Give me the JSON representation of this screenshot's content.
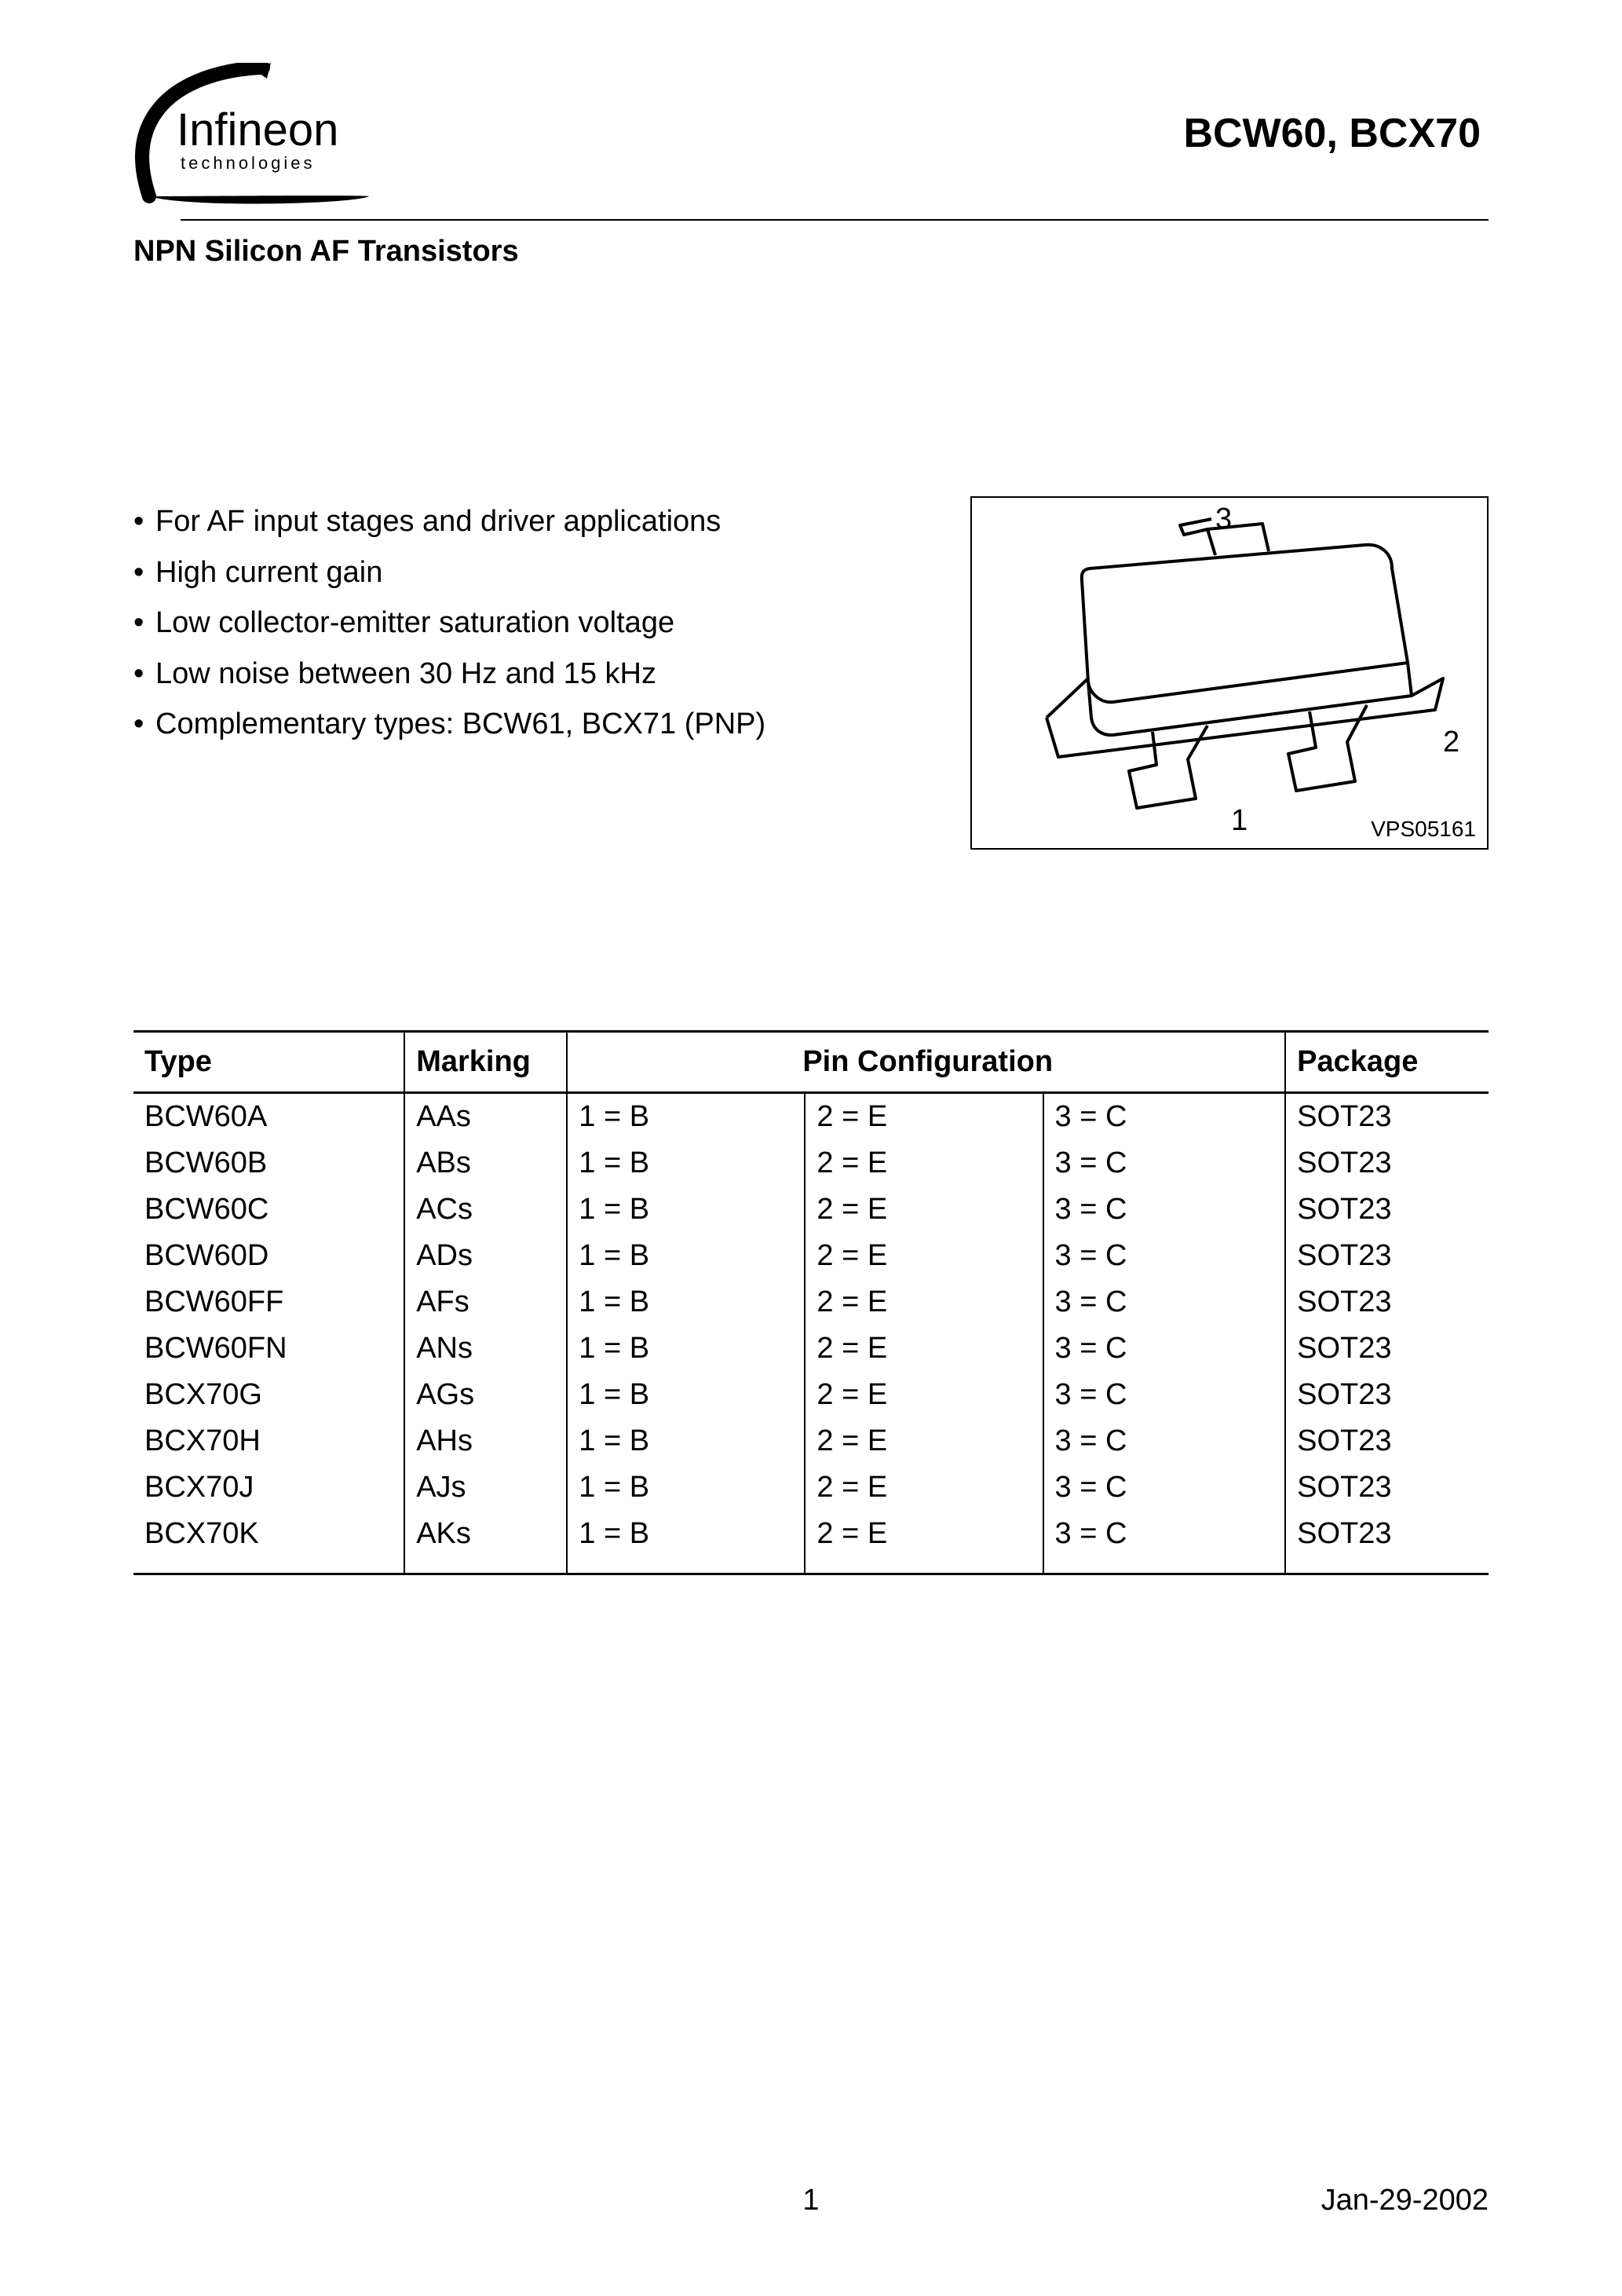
{
  "header": {
    "logo": {
      "brand_upper": "Infineon",
      "brand_lower": "technologies"
    },
    "product_title": "BCW60, BCX70",
    "subtitle": "NPN Silicon AF Transistors"
  },
  "features": [
    "For AF input stages and driver applications",
    "High current gain",
    "Low collector-emitter saturation voltage",
    "Low noise between 30 Hz and 15 kHz",
    "Complementary types: BCW61, BCX71 (PNP)"
  ],
  "package_diagram": {
    "pin_labels": {
      "1": "1",
      "2": "2",
      "3": "3"
    },
    "drawing_id": "VPS05161"
  },
  "device_table": {
    "columns": [
      "Type",
      "Marking",
      "Pin Configuration",
      "Package"
    ],
    "pin_subcols": 3,
    "rows": [
      {
        "type": "BCW60A",
        "marking": "AAs",
        "pins": [
          "1 = B",
          "2 = E",
          "3 = C"
        ],
        "package": "SOT23"
      },
      {
        "type": "BCW60B",
        "marking": "ABs",
        "pins": [
          "1 = B",
          "2 = E",
          "3 = C"
        ],
        "package": "SOT23"
      },
      {
        "type": "BCW60C",
        "marking": "ACs",
        "pins": [
          "1 = B",
          "2 = E",
          "3 = C"
        ],
        "package": "SOT23"
      },
      {
        "type": "BCW60D",
        "marking": "ADs",
        "pins": [
          "1 = B",
          "2 = E",
          "3 = C"
        ],
        "package": "SOT23"
      },
      {
        "type": "BCW60FF",
        "marking": "AFs",
        "pins": [
          "1 = B",
          "2 = E",
          "3 = C"
        ],
        "package": "SOT23"
      },
      {
        "type": "BCW60FN",
        "marking": "ANs",
        "pins": [
          "1 = B",
          "2 = E",
          "3 = C"
        ],
        "package": "SOT23"
      },
      {
        "type": "BCX70G",
        "marking": "AGs",
        "pins": [
          "1 = B",
          "2 = E",
          "3 = C"
        ],
        "package": "SOT23"
      },
      {
        "type": "BCX70H",
        "marking": "AHs",
        "pins": [
          "1 = B",
          "2 = E",
          "3 = C"
        ],
        "package": "SOT23"
      },
      {
        "type": "BCX70J",
        "marking": "AJs",
        "pins": [
          "1 = B",
          "2 = E",
          "3 = C"
        ],
        "package": "SOT23"
      },
      {
        "type": "BCX70K",
        "marking": "AKs",
        "pins": [
          "1 = B",
          "2 = E",
          "3 = C"
        ],
        "package": "SOT23"
      }
    ]
  },
  "footer": {
    "page_number": "1",
    "date": "Jan-29-2002"
  },
  "style": {
    "body_font_size_pt": 16,
    "heading_font_size_pt": 22,
    "text_color": "#000000",
    "background_color": "#ffffff",
    "rule_color": "#000000",
    "table_border_color": "#000000",
    "font_family": "Arial, Helvetica, sans-serif"
  }
}
